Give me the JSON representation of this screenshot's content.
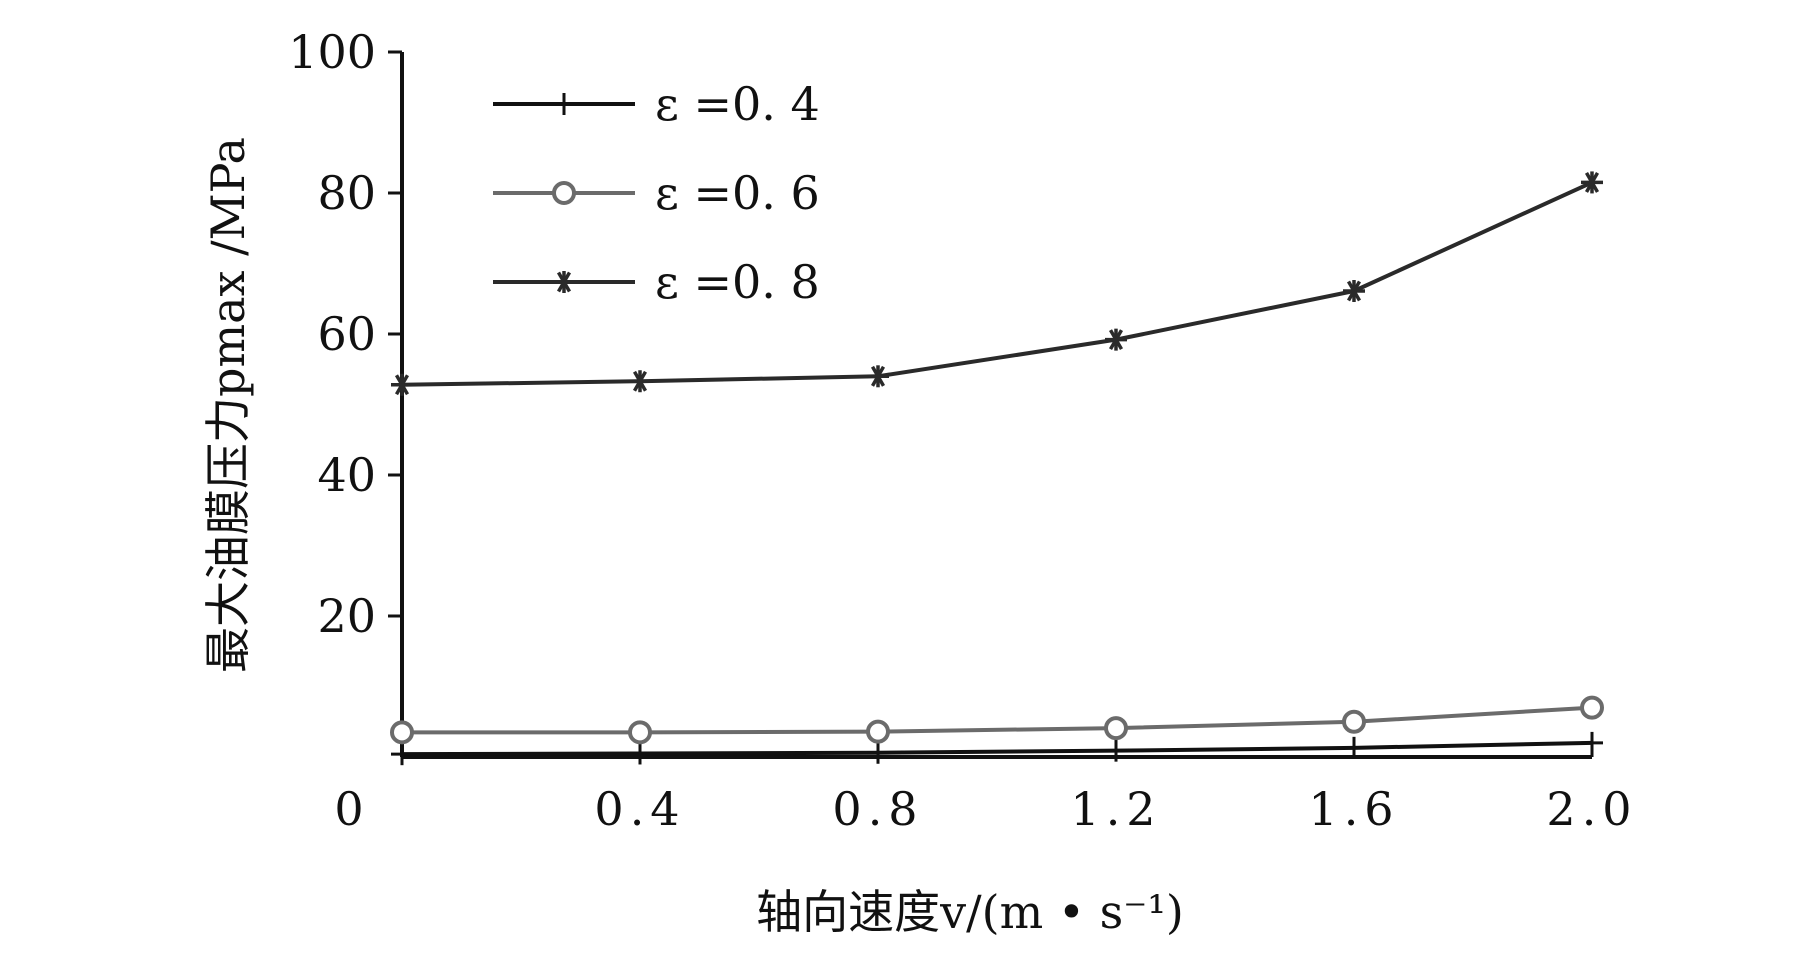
{
  "chart_data": {
    "type": "line",
    "xlabel": "轴向速度v/(m • s⁻¹)",
    "ylabel": "最大油膜压力pmax /MPa",
    "xlim": [
      0,
      2.0
    ],
    "ylim": [
      0,
      100
    ],
    "x_ticks": [
      "0",
      "0.4",
      "0.8",
      "1.2",
      "1.6",
      "2.0"
    ],
    "y_ticks": [
      "20",
      "40",
      "60",
      "80",
      "100"
    ],
    "x": [
      0.0,
      0.4,
      0.8,
      1.2,
      1.6,
      2.0
    ],
    "legend_position": "top-left",
    "grid": false,
    "series": [
      {
        "name": "ε =0. 4",
        "marker": "plus",
        "color": "#111111",
        "values": [
          0.4,
          0.5,
          0.6,
          0.9,
          1.3,
          2.0
        ]
      },
      {
        "name": "ε =0. 6",
        "marker": "circle",
        "color": "#6b6b6b",
        "values": [
          3.5,
          3.5,
          3.6,
          4.1,
          5.0,
          7.0
        ]
      },
      {
        "name": "ε =0. 8",
        "marker": "asterisk",
        "color": "#2a2a2a",
        "values": [
          52.8,
          53.3,
          54.0,
          59.2,
          66.1,
          81.5
        ]
      }
    ]
  }
}
